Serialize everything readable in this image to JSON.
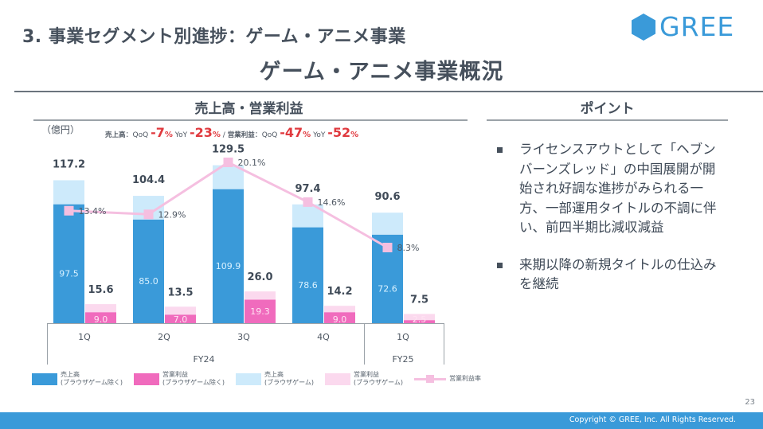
{
  "header": {
    "section_title": "3. 事業セグメント別進捗：ゲーム・アニメ事業",
    "page_title": "ゲーム・アニメ事業概況",
    "logo_text": "GREE",
    "logo_color": "#3a9ad9"
  },
  "left_panel": {
    "heading": "売上高・営業利益",
    "unit": "（億円）",
    "growth": {
      "sales_label": "売上高",
      "sep1": "：QoQ",
      "sales_qoq": "-7",
      "pct": "%",
      "yoy_label": "YoY",
      "sales_yoy": "-23",
      "slash": "/",
      "op_label": "営業利益",
      "op_qoq": "-47",
      "op_yoy": "-52"
    }
  },
  "right_panel": {
    "heading": "ポイント",
    "bullets": [
      "ライセンスアウトとして「ヘブンバーンズレッド」の中国展開が開始され好調な進捗がみられる一方、一部運用タイトルの不調に伴い、前四半期比減収減益",
      "来期以降の新規タイトルの仕込みを継続"
    ]
  },
  "chart_data": {
    "type": "bar",
    "title": "売上高・営業利益",
    "ylabel": "（億円）",
    "categories": [
      "1Q",
      "2Q",
      "3Q",
      "4Q",
      "1Q"
    ],
    "fiscal_groups": [
      {
        "label": "FY24",
        "count": 4
      },
      {
        "label": "FY25",
        "count": 1
      }
    ],
    "series": [
      {
        "name": "売上高（ブラウザゲーム除く）",
        "stack": "sales",
        "color": "#3a9ad9",
        "values": [
          97.5,
          85.0,
          109.9,
          78.6,
          72.6
        ]
      },
      {
        "name": "売上高（ブラウザゲーム）",
        "stack": "sales",
        "color": "#cdeafb",
        "values": [
          19.7,
          19.4,
          19.6,
          18.8,
          18.0
        ]
      },
      {
        "name": "営業利益（ブラウザゲーム除く）",
        "stack": "op",
        "color": "#f06bbd",
        "values": [
          9.0,
          7.0,
          19.3,
          9.0,
          2.5
        ]
      },
      {
        "name": "営業利益（ブラウザゲーム）",
        "stack": "op",
        "color": "#fbd9ee",
        "values": [
          6.6,
          6.5,
          6.7,
          5.2,
          5.0
        ]
      }
    ],
    "sales_totals": [
      "117.2",
      "104.4",
      "129.5",
      "97.4",
      "90.6"
    ],
    "op_totals": [
      "15.6",
      "13.5",
      "26.0",
      "14.2",
      "7.5"
    ],
    "sales_inner_labels": [
      "97.5",
      "85.0",
      "109.9",
      "78.6",
      "72.6"
    ],
    "op_inner_labels": [
      "9.0",
      "7.0",
      "19.3",
      "9.0",
      "2.5"
    ],
    "margin_series": {
      "name": "営業利益率",
      "color": "#f5bfe0",
      "values": [
        13.4,
        12.9,
        20.1,
        14.6,
        8.3
      ],
      "labels": [
        "13.4%",
        "12.9%",
        "20.1%",
        "14.6%",
        "8.3%"
      ]
    },
    "legend": [
      {
        "line1": "売上高",
        "line2": "(ブラウザゲーム除く)",
        "color": "#3a9ad9",
        "kind": "box"
      },
      {
        "line1": "営業利益",
        "line2": "(ブラウザゲーム除く)",
        "color": "#f06bbd",
        "kind": "box"
      },
      {
        "line1": "売上高",
        "line2": "(ブラウザゲーム)",
        "color": "#cdeafb",
        "kind": "box"
      },
      {
        "line1": "営業利益",
        "line2": "(ブラウザゲーム)",
        "color": "#fbd9ee",
        "kind": "box"
      },
      {
        "line1": "営業利益率",
        "line2": "",
        "color": "#f5bfe0",
        "kind": "line"
      }
    ],
    "legend_position": "bottom",
    "grid": false
  },
  "footer": {
    "page_number": "23",
    "copyright": "Copyright © GREE, Inc. All Rights Reserved."
  }
}
